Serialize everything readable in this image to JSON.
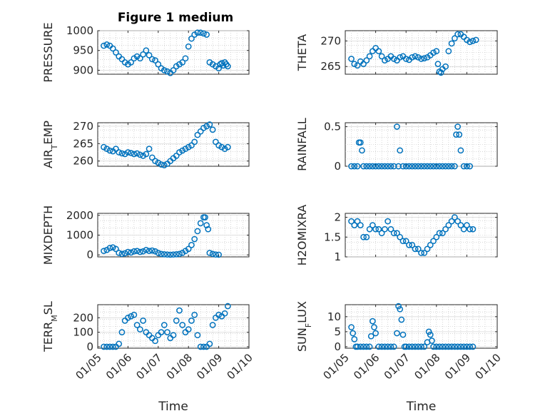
{
  "figure_title": "Figure 1 medium",
  "marker_color": "#0072BD",
  "chart_data": [
    {
      "type": "scatter",
      "marker": "circle",
      "grid": true,
      "ylabel": "PRESSURE",
      "xlabel": "",
      "title": "Figure 1 medium",
      "xlim": [
        0,
        5
      ],
      "ylim": [
        890,
        1000
      ],
      "xticks": [
        0,
        1,
        2,
        3,
        4,
        5
      ],
      "xticklabels": [
        "",
        "",
        "",
        "",
        "",
        ""
      ],
      "yticks": [
        900,
        950,
        1000
      ],
      "yticklabels": [
        "900",
        "950",
        "1000"
      ],
      "x": [
        0.2,
        0.3,
        0.4,
        0.5,
        0.6,
        0.7,
        0.8,
        0.9,
        1.0,
        1.1,
        1.2,
        1.3,
        1.4,
        1.5,
        1.6,
        1.7,
        1.8,
        1.9,
        2.0,
        2.1,
        2.2,
        2.3,
        2.4,
        2.5,
        2.6,
        2.7,
        2.8,
        2.9,
        3.0,
        3.1,
        3.2,
        3.3,
        3.4,
        3.5,
        3.6,
        3.7,
        3.8,
        3.9,
        4.0,
        4.05,
        4.1,
        4.15,
        4.2,
        4.25,
        4.3
      ],
      "y": [
        962,
        965,
        962,
        955,
        945,
        935,
        928,
        920,
        915,
        920,
        930,
        935,
        930,
        940,
        950,
        938,
        928,
        925,
        915,
        905,
        900,
        897,
        893,
        900,
        910,
        915,
        920,
        930,
        960,
        980,
        990,
        995,
        995,
        993,
        990,
        920,
        915,
        910,
        905,
        915,
        918,
        912,
        920,
        915,
        910
      ]
    },
    {
      "type": "scatter",
      "marker": "circle",
      "grid": true,
      "ylabel": "THETA",
      "xlabel": "",
      "xlim": [
        0,
        5
      ],
      "ylim": [
        263.5,
        272
      ],
      "xticks": [
        0,
        1,
        2,
        3,
        4,
        5
      ],
      "xticklabels": [
        "",
        "",
        "",
        "",
        "",
        ""
      ],
      "yticks": [
        265,
        270
      ],
      "yticklabels": [
        "265",
        "270"
      ],
      "x": [
        0.2,
        0.3,
        0.4,
        0.5,
        0.6,
        0.7,
        0.8,
        0.9,
        1.0,
        1.1,
        1.2,
        1.3,
        1.4,
        1.5,
        1.6,
        1.7,
        1.8,
        1.9,
        2.0,
        2.1,
        2.2,
        2.3,
        2.4,
        2.5,
        2.6,
        2.7,
        2.8,
        2.9,
        3.0,
        3.05,
        3.1,
        3.15,
        3.2,
        3.3,
        3.4,
        3.5,
        3.6,
        3.7,
        3.8,
        3.9,
        4.0,
        4.1,
        4.2,
        4.3
      ],
      "y": [
        266.5,
        265.5,
        265.2,
        266.0,
        265.5,
        266.2,
        267.0,
        268.0,
        268.6,
        268.0,
        267.0,
        266.2,
        266.5,
        267.0,
        266.5,
        266.2,
        266.8,
        267.0,
        266.5,
        266.3,
        266.8,
        267.0,
        266.8,
        266.5,
        266.6,
        266.8,
        267.2,
        267.7,
        268.0,
        265.5,
        264.0,
        263.8,
        264.5,
        265.0,
        268.0,
        269.5,
        270.5,
        271.3,
        271.3,
        270.8,
        270.2,
        269.8,
        270.0,
        270.2
      ]
    },
    {
      "type": "scatter",
      "marker": "circle",
      "grid": true,
      "ylabel": "AIR_TEMP",
      "xlabel": "",
      "xlim": [
        0,
        5
      ],
      "ylim": [
        258.5,
        271
      ],
      "xticks": [
        0,
        1,
        2,
        3,
        4,
        5
      ],
      "xticklabels": [
        "",
        "",
        "",
        "",
        "",
        ""
      ],
      "yticks": [
        260,
        265,
        270
      ],
      "yticklabels": [
        "260",
        "265",
        "270"
      ],
      "x": [
        0.2,
        0.3,
        0.4,
        0.5,
        0.6,
        0.7,
        0.8,
        0.9,
        1.0,
        1.1,
        1.2,
        1.3,
        1.4,
        1.5,
        1.6,
        1.7,
        1.8,
        1.9,
        2.0,
        2.1,
        2.2,
        2.3,
        2.4,
        2.5,
        2.6,
        2.7,
        2.8,
        2.9,
        3.0,
        3.1,
        3.2,
        3.3,
        3.4,
        3.5,
        3.6,
        3.7,
        3.8,
        3.9,
        4.0,
        4.1,
        4.2,
        4.3
      ],
      "y": [
        264.0,
        263.5,
        263.0,
        262.8,
        263.5,
        262.5,
        262.2,
        262.0,
        262.5,
        262.3,
        262.0,
        262.2,
        261.8,
        261.5,
        262.0,
        263.5,
        261.0,
        260.0,
        259.5,
        259.0,
        258.8,
        259.2,
        260.0,
        260.8,
        261.5,
        262.5,
        263.0,
        263.5,
        264.0,
        264.5,
        265.5,
        267.5,
        268.5,
        269.5,
        270.0,
        270.5,
        269.0,
        265.5,
        264.5,
        264.0,
        263.5,
        264.0
      ]
    },
    {
      "type": "scatter",
      "marker": "circle",
      "grid": true,
      "ylabel": "RAINFALL",
      "xlabel": "",
      "xlim": [
        0,
        5
      ],
      "ylim": [
        0,
        0.55
      ],
      "xticks": [
        0,
        1,
        2,
        3,
        4,
        5
      ],
      "xticklabels": [
        "",
        "",
        "",
        "",
        "",
        ""
      ],
      "yticks": [
        0,
        0.5
      ],
      "yticklabels": [
        "0",
        "0.5"
      ],
      "x": [
        0.2,
        0.3,
        0.4,
        0.45,
        0.5,
        0.55,
        0.6,
        0.7,
        0.8,
        0.9,
        1.0,
        1.1,
        1.2,
        1.3,
        1.4,
        1.5,
        1.6,
        1.7,
        1.75,
        1.8,
        1.9,
        2.0,
        2.1,
        2.2,
        2.3,
        2.4,
        2.5,
        2.6,
        2.7,
        2.8,
        2.9,
        3.0,
        3.1,
        3.2,
        3.3,
        3.4,
        3.5,
        3.6,
        3.65,
        3.7,
        3.75,
        3.8,
        3.9,
        4.0,
        4.1
      ],
      "y": [
        0,
        0,
        0,
        0.3,
        0.3,
        0.2,
        0,
        0,
        0,
        0,
        0,
        0,
        0,
        0,
        0,
        0,
        0,
        0.5,
        0,
        0.2,
        0,
        0,
        0,
        0,
        0,
        0,
        0,
        0,
        0,
        0,
        0,
        0,
        0,
        0,
        0,
        0,
        0,
        0,
        0.4,
        0.5,
        0.4,
        0.2,
        0,
        0,
        0
      ]
    },
    {
      "type": "scatter",
      "marker": "circle",
      "grid": true,
      "ylabel": "MIXDEPTH",
      "xlabel": "",
      "xlim": [
        0,
        5
      ],
      "ylim": [
        -100,
        2100
      ],
      "xticks": [
        0,
        1,
        2,
        3,
        4,
        5
      ],
      "xticklabels": [
        "",
        "",
        "",
        "",
        "",
        ""
      ],
      "yticks": [
        0,
        1000,
        2000
      ],
      "yticklabels": [
        "0",
        "1000",
        "2000"
      ],
      "x": [
        0.2,
        0.3,
        0.4,
        0.5,
        0.6,
        0.7,
        0.8,
        0.9,
        1.0,
        1.1,
        1.2,
        1.3,
        1.4,
        1.5,
        1.6,
        1.7,
        1.8,
        1.9,
        2.0,
        2.1,
        2.2,
        2.3,
        2.4,
        2.5,
        2.6,
        2.7,
        2.8,
        2.9,
        3.0,
        3.1,
        3.2,
        3.3,
        3.4,
        3.5,
        3.55,
        3.6,
        3.65,
        3.7,
        3.8,
        3.9,
        4.0
      ],
      "y": [
        200,
        250,
        350,
        380,
        300,
        100,
        50,
        80,
        150,
        120,
        180,
        200,
        150,
        180,
        250,
        200,
        220,
        180,
        100,
        50,
        30,
        20,
        10,
        20,
        30,
        50,
        100,
        200,
        300,
        500,
        800,
        1200,
        1600,
        1900,
        1900,
        1500,
        1300,
        100,
        50,
        20,
        10
      ]
    },
    {
      "type": "scatter",
      "marker": "circle",
      "grid": true,
      "ylabel": "H2OMIXRA",
      "xlabel": "",
      "xlim": [
        0,
        5
      ],
      "ylim": [
        1,
        2.1
      ],
      "xticks": [
        0,
        1,
        2,
        3,
        4,
        5
      ],
      "xticklabels": [
        "",
        "",
        "",
        "",
        "",
        ""
      ],
      "yticks": [
        1,
        1.5,
        2
      ],
      "yticklabels": [
        "1",
        "1.5",
        "2"
      ],
      "x": [
        0.2,
        0.3,
        0.4,
        0.5,
        0.6,
        0.7,
        0.8,
        0.9,
        1.0,
        1.1,
        1.2,
        1.3,
        1.4,
        1.5,
        1.6,
        1.7,
        1.8,
        1.9,
        2.0,
        2.1,
        2.2,
        2.3,
        2.4,
        2.5,
        2.6,
        2.7,
        2.8,
        2.9,
        3.0,
        3.1,
        3.2,
        3.3,
        3.4,
        3.5,
        3.6,
        3.7,
        3.8,
        3.9,
        4.0,
        4.1,
        4.2
      ],
      "y": [
        1.9,
        1.8,
        1.9,
        1.8,
        1.5,
        1.5,
        1.7,
        1.8,
        1.7,
        1.7,
        1.6,
        1.7,
        1.9,
        1.7,
        1.6,
        1.6,
        1.5,
        1.4,
        1.4,
        1.3,
        1.3,
        1.2,
        1.2,
        1.1,
        1.1,
        1.2,
        1.3,
        1.4,
        1.5,
        1.6,
        1.6,
        1.7,
        1.8,
        1.9,
        2.0,
        1.9,
        1.8,
        1.7,
        1.8,
        1.7,
        1.7
      ]
    },
    {
      "type": "scatter",
      "marker": "circle",
      "grid": true,
      "ylabel": "TERR_MSL",
      "xlabel": "Time",
      "xlim": [
        0,
        5
      ],
      "ylim": [
        -10,
        290
      ],
      "xticks": [
        0,
        1,
        2,
        3,
        4,
        5
      ],
      "xticklabels": [
        "01/05",
        "01/06",
        "01/07",
        "01/08",
        "01/09",
        "01/10"
      ],
      "yticks": [
        0,
        100,
        200
      ],
      "yticklabels": [
        "0",
        "100",
        "200"
      ],
      "x": [
        0.2,
        0.3,
        0.4,
        0.5,
        0.6,
        0.7,
        0.8,
        0.9,
        1.0,
        1.1,
        1.2,
        1.3,
        1.4,
        1.5,
        1.6,
        1.7,
        1.8,
        1.9,
        2.0,
        2.1,
        2.2,
        2.3,
        2.4,
        2.5,
        2.6,
        2.7,
        2.8,
        2.9,
        3.0,
        3.1,
        3.2,
        3.3,
        3.4,
        3.5,
        3.6,
        3.7,
        3.8,
        3.9,
        4.0,
        4.1,
        4.2,
        4.3
      ],
      "y": [
        0,
        0,
        0,
        0,
        0,
        20,
        100,
        180,
        200,
        210,
        220,
        150,
        120,
        180,
        100,
        80,
        60,
        40,
        80,
        100,
        150,
        100,
        60,
        80,
        180,
        250,
        150,
        100,
        120,
        180,
        220,
        80,
        0,
        0,
        0,
        20,
        150,
        200,
        220,
        210,
        230,
        280
      ]
    },
    {
      "type": "scatter",
      "marker": "circle",
      "grid": true,
      "ylabel": "SUN_FLUX",
      "xlabel": "Time",
      "xlim": [
        0,
        5
      ],
      "ylim": [
        -0.5,
        14
      ],
      "xticks": [
        0,
        1,
        2,
        3,
        4,
        5
      ],
      "xticklabels": [
        "01/05",
        "01/06",
        "01/07",
        "01/08",
        "01/09",
        "01/10"
      ],
      "yticks": [
        0,
        5,
        10
      ],
      "yticklabels": [
        "0",
        "5",
        "10"
      ],
      "x": [
        0.2,
        0.25,
        0.3,
        0.35,
        0.4,
        0.5,
        0.6,
        0.7,
        0.8,
        0.85,
        0.9,
        0.95,
        1.0,
        1.1,
        1.2,
        1.3,
        1.4,
        1.5,
        1.6,
        1.7,
        1.75,
        1.8,
        1.85,
        1.9,
        1.95,
        2.0,
        2.1,
        2.2,
        2.3,
        2.4,
        2.5,
        2.6,
        2.7,
        2.75,
        2.8,
        2.85,
        2.9,
        3.0,
        3.1,
        3.2,
        3.3,
        3.4,
        3.5,
        3.6,
        3.7,
        3.8,
        3.9,
        4.0,
        4.1,
        4.2
      ],
      "y": [
        6.5,
        4.5,
        2.5,
        0,
        0,
        0,
        0,
        0,
        0,
        3.5,
        8.5,
        6.5,
        4.5,
        0,
        0,
        0,
        0,
        0,
        0,
        4.5,
        13.5,
        12.5,
        9.0,
        4.0,
        0,
        0,
        0,
        0,
        0,
        0,
        0,
        0,
        1.5,
        5.0,
        4.0,
        2.0,
        0,
        0,
        0,
        0,
        0,
        0,
        0,
        0,
        0,
        0,
        0,
        0,
        0,
        0
      ]
    }
  ]
}
